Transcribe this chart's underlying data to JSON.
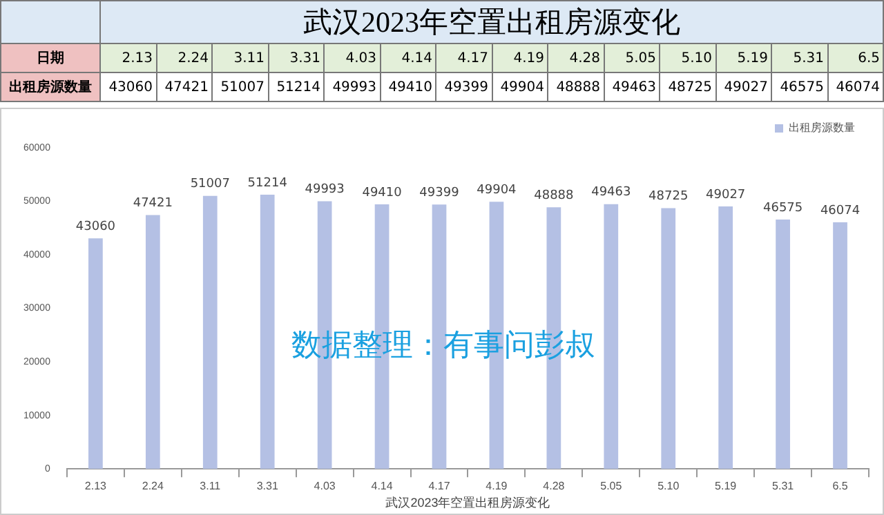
{
  "chart_data": [
    {
      "type": "other",
      "title": "武汉2023年空置出租房源变化",
      "annotations": [
        "日期"
      ],
      "categories": [
        "2.13",
        "2.24",
        "3.11",
        "3.31",
        "4.03",
        "4.14",
        "4.17",
        "4.19",
        "4.28",
        "5.05",
        "5.10",
        "5.19",
        "5.31",
        "6.5"
      ],
      "series": [
        {
          "name": "出租房源数量",
          "values": [
            43060,
            47421,
            51007,
            51214,
            49993,
            49410,
            49399,
            49904,
            48888,
            49463,
            48725,
            49027,
            46575,
            46074
          ]
        }
      ],
      "data_labels": true
    },
    {
      "type": "bar",
      "xlabel": "武汉2023年空置出租房源变化",
      "categories": [
        "2.13",
        "2.24",
        "3.11",
        "3.31",
        "4.03",
        "4.14",
        "4.17",
        "4.19",
        "4.28",
        "5.05",
        "5.10",
        "5.19",
        "5.31",
        "6.5"
      ],
      "series": [
        {
          "name": "出租房源数量",
          "color": "#b4c0e4",
          "values": [
            43060,
            47421,
            51007,
            51214,
            49993,
            49410,
            49399,
            49904,
            48888,
            49463,
            48725,
            49027,
            46575,
            46074
          ]
        }
      ],
      "ylim": [
        0,
        60000
      ],
      "yticks": [
        0,
        10000,
        20000,
        30000,
        40000,
        50000,
        60000
      ],
      "grid": false,
      "legend": "top right",
      "data_labels": true,
      "annotations": [
        "数据整理：有事问彭叔"
      ]
    }
  ]
}
